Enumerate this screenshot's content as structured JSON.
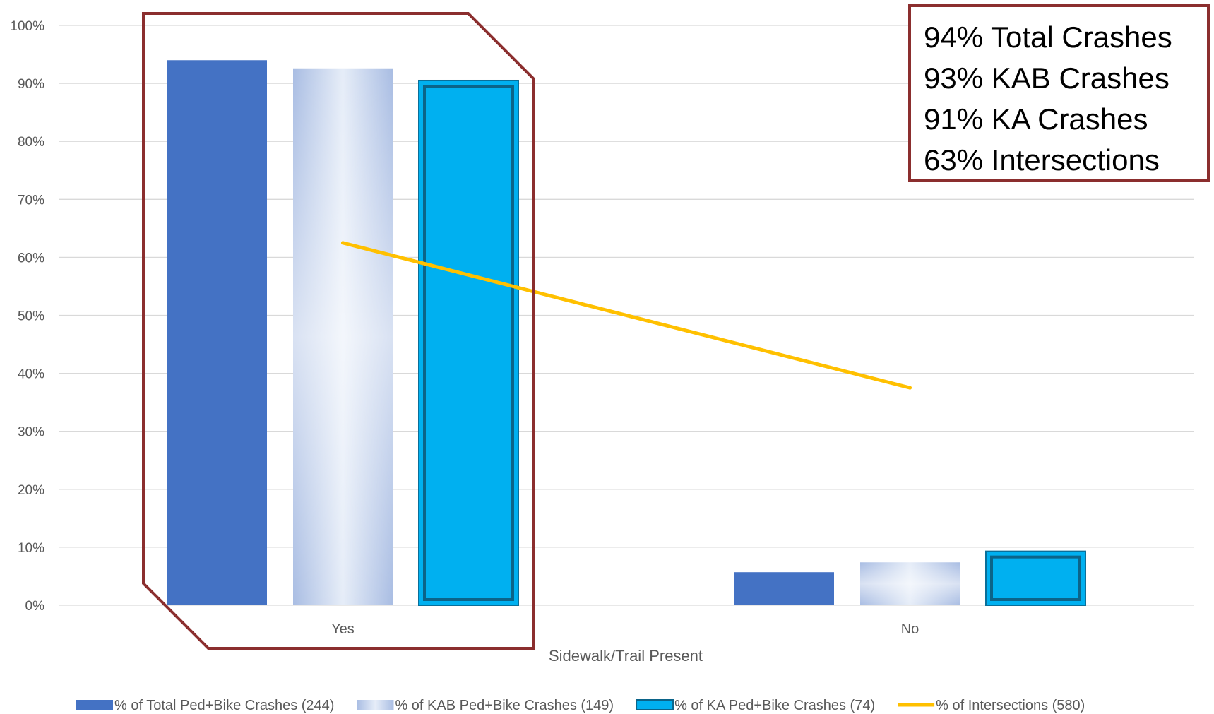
{
  "callout": {
    "lines": [
      "94% Total Crashes",
      "93% KAB Crashes",
      "91% KA Crashes",
      "63% Intersections"
    ],
    "border_color": "#8b2e2e"
  },
  "highlight": {
    "color": "#8b2e2e",
    "category": "Yes"
  },
  "chart_data": {
    "type": "bar",
    "title": "",
    "xlabel": "Sidewalk/Trail Present",
    "ylabel": "",
    "categories": [
      "Yes",
      "No"
    ],
    "ylim": [
      0,
      1
    ],
    "yticks": [
      0,
      0.1,
      0.2,
      0.3,
      0.4,
      0.5,
      0.6,
      0.7,
      0.8,
      0.9,
      1.0
    ],
    "ytick_labels": [
      "0%",
      "10%",
      "20%",
      "30%",
      "40%",
      "50%",
      "60%",
      "70%",
      "80%",
      "90%",
      "100%"
    ],
    "grid": true,
    "legend_position": "bottom",
    "series": [
      {
        "name": "% of Total Ped+Bike Crashes (244)",
        "kind": "bar",
        "values": [
          0.94,
          0.057
        ],
        "color": "#4472c4"
      },
      {
        "name": "% of KAB Ped+Bike Crashes (149)",
        "kind": "bar",
        "values": [
          0.926,
          0.074
        ],
        "color": "#b4c7e7"
      },
      {
        "name": "% of KA Ped+Bike Crashes (74)",
        "kind": "bar",
        "values": [
          0.905,
          0.093
        ],
        "color": "#00b0f0"
      },
      {
        "name": "% of Intersections (580)",
        "kind": "line",
        "values": [
          0.625,
          0.375
        ],
        "color": "#ffc000"
      }
    ]
  }
}
